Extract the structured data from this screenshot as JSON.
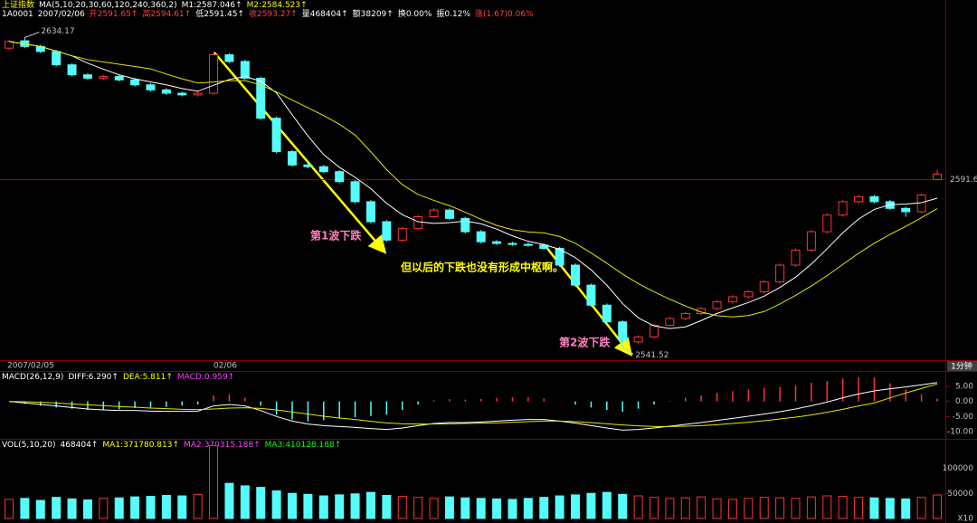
{
  "chart_data": [
    {
      "type": "candlestick",
      "header": [
        {
          "text": "上证指数",
          "color": "#ffff00"
        },
        {
          "text": "MA(5,10,20,30,60,120,240,360,2)",
          "color": "#ffffff"
        },
        {
          "text": "M1:2587.046↑",
          "color": "#ffffff"
        },
        {
          "text": "M2:2584.523↑",
          "color": "#ffff00"
        }
      ],
      "subheader": [
        {
          "text": "1A0001",
          "color": "#ffffff"
        },
        {
          "text": "2007/02/06",
          "color": "#ffffff"
        },
        {
          "text": "开2591.65↑",
          "color": "#ff4040"
        },
        {
          "text": "高2594.61↑",
          "color": "#ff4040"
        },
        {
          "text": "低2591.45↑",
          "color": "#ffffff"
        },
        {
          "text": "收2593.27↑",
          "color": "#ff4040"
        },
        {
          "text": "量468404↑",
          "color": "#ffffff"
        },
        {
          "text": "额38209↑",
          "color": "#ffffff"
        },
        {
          "text": "换0.00%",
          "color": "#ffffff"
        },
        {
          "text": "振0.12%",
          "color": "#ffffff"
        },
        {
          "text": "涨(1.67)0.06%",
          "color": "#ff4040"
        }
      ],
      "time_labels": [
        "2007/02/05",
        "02/06"
      ],
      "period_label": "1分钟",
      "annotations": [
        {
          "text": "第1波下跌",
          "color": "#ff80c0"
        },
        {
          "text": "但以后的下跌也没有形成中枢啊。",
          "color": "#ffff00"
        },
        {
          "text": "第2波下跌",
          "color": "#ff80c0"
        }
      ],
      "up_color": "#ff3232",
      "down_color": "#54fcfc",
      "ma_lines": [
        {
          "period": 5,
          "color": "#ffffff"
        },
        {
          "period": 10,
          "color": "#e6e600"
        }
      ],
      "price_line": 2591.6,
      "ylim": [
        2537,
        2640
      ],
      "candles": [
        [
          2631,
          2633.5,
          2630.5,
          2633
        ],
        [
          2633.2,
          2634.17,
          2631,
          2631.5
        ],
        [
          2631.5,
          2632,
          2629.5,
          2630
        ],
        [
          2630,
          2630.5,
          2625.5,
          2626
        ],
        [
          2626,
          2626.5,
          2622.5,
          2623
        ],
        [
          2623,
          2623.5,
          2621.5,
          2622
        ],
        [
          2622,
          2623,
          2621.5,
          2622.5
        ],
        [
          2622.5,
          2623,
          2621,
          2621.5
        ],
        [
          2621.5,
          2622,
          2619.5,
          2620
        ],
        [
          2620,
          2620.5,
          2618,
          2618.5
        ],
        [
          2618.5,
          2619,
          2617,
          2617.5
        ],
        [
          2617.5,
          2618,
          2616.5,
          2617
        ],
        [
          2617,
          2618,
          2616.5,
          2617.5
        ],
        [
          2617.5,
          2630,
          2617,
          2629
        ],
        [
          2629,
          2629.5,
          2626.5,
          2627
        ],
        [
          2627,
          2627.5,
          2621.5,
          2622
        ],
        [
          2622,
          2622.5,
          2609.5,
          2610
        ],
        [
          2610,
          2610.5,
          2599.5,
          2600
        ],
        [
          2600,
          2600.5,
          2595.5,
          2596
        ],
        [
          2596,
          2597,
          2595,
          2595.5
        ],
        [
          2595.5,
          2596,
          2593.5,
          2594
        ],
        [
          2594,
          2594.5,
          2590.5,
          2591
        ],
        [
          2591,
          2591.5,
          2584.5,
          2585
        ],
        [
          2585,
          2585.5,
          2578.5,
          2579
        ],
        [
          2579,
          2579.5,
          2573,
          2573.5
        ],
        [
          2573.5,
          2577.5,
          2573,
          2577
        ],
        [
          2577,
          2581,
          2576.5,
          2580.5
        ],
        [
          2580.5,
          2583,
          2580,
          2582.5
        ],
        [
          2582.5,
          2583,
          2579.5,
          2580
        ],
        [
          2580,
          2580.5,
          2575.5,
          2576
        ],
        [
          2576,
          2576.5,
          2572.5,
          2573
        ],
        [
          2573,
          2573.5,
          2572,
          2572.5
        ],
        [
          2572.5,
          2573,
          2571.8,
          2572.2
        ],
        [
          2572.2,
          2572.8,
          2571.5,
          2572
        ],
        [
          2572,
          2572.5,
          2570.5,
          2571
        ],
        [
          2571,
          2571.5,
          2565.5,
          2566
        ],
        [
          2566,
          2566.5,
          2559.5,
          2560
        ],
        [
          2560,
          2560.5,
          2553.5,
          2554
        ],
        [
          2554,
          2554.5,
          2548.5,
          2549
        ],
        [
          2549,
          2549.5,
          2541.52,
          2543.5
        ],
        [
          2543,
          2545,
          2542.5,
          2544.5
        ],
        [
          2544.5,
          2548.5,
          2544,
          2548
        ],
        [
          2548,
          2550.5,
          2547.5,
          2550
        ],
        [
          2550,
          2552,
          2549.5,
          2551.5
        ],
        [
          2551.5,
          2553.5,
          2551,
          2553
        ],
        [
          2553,
          2555.5,
          2552.5,
          2555
        ],
        [
          2555,
          2557,
          2554.5,
          2556.5
        ],
        [
          2556.5,
          2558.5,
          2556,
          2558
        ],
        [
          2558,
          2561.5,
          2557.5,
          2561
        ],
        [
          2561,
          2566.5,
          2560.5,
          2566
        ],
        [
          2566,
          2571,
          2565.5,
          2570.5
        ],
        [
          2570.5,
          2576.5,
          2570,
          2576
        ],
        [
          2576,
          2581.5,
          2575.5,
          2581
        ],
        [
          2581,
          2585.5,
          2580.5,
          2585
        ],
        [
          2585,
          2587,
          2584.5,
          2586.5
        ],
        [
          2586.5,
          2587,
          2584.5,
          2585
        ],
        [
          2585,
          2585.5,
          2582.5,
          2583
        ],
        [
          2583,
          2583.5,
          2580.5,
          2582
        ],
        [
          2582,
          2587.5,
          2581.5,
          2587
        ],
        [
          2591.65,
          2594.61,
          2591.45,
          2593.27
        ]
      ]
    },
    {
      "type": "macd",
      "header": [
        {
          "text": "MACD(26,12,9)",
          "color": "#ffffff"
        },
        {
          "text": "DIFF:6.290↑",
          "color": "#ffffff"
        },
        {
          "text": "DEA:5.811↑",
          "color": "#ffff00"
        },
        {
          "text": "MACD:0.959↑",
          "color": "#ff40ff"
        }
      ],
      "ylim": [
        -12.4,
        9.5
      ],
      "yticks": [
        {
          "value": 5,
          "label": "5.00"
        },
        {
          "value": 0,
          "label": "0.00"
        },
        {
          "value": -5,
          "label": "-5.00"
        },
        {
          "value": -10,
          "label": "-10.00"
        }
      ],
      "series": [
        {
          "name": "DIFF",
          "color": "#ffffff",
          "values": [
            0,
            -0.5,
            -1,
            -1.5,
            -2,
            -2.5,
            -2.8,
            -3,
            -3,
            -3.2,
            -3.3,
            -3.3,
            -3.2,
            -1.5,
            -1,
            -1.5,
            -3,
            -5,
            -6.5,
            -7.5,
            -8,
            -8.3,
            -8.6,
            -9,
            -9.3,
            -8.8,
            -8,
            -7.3,
            -7,
            -7,
            -6.8,
            -6.5,
            -6.2,
            -6,
            -6,
            -6.5,
            -7.2,
            -8,
            -8.8,
            -9.5,
            -9.3,
            -8.8,
            -8.2,
            -7.6,
            -7,
            -6.3,
            -5.6,
            -4.9,
            -4.2,
            -3.4,
            -2.5,
            -1.4,
            -0.2,
            1.2,
            2.5,
            3.5,
            4.2,
            4.8,
            5.5,
            6.29
          ]
        },
        {
          "name": "DEA",
          "color": "#e6e600",
          "values": [
            0,
            -0.1,
            -0.3,
            -0.5,
            -0.8,
            -1.1,
            -1.4,
            -1.7,
            -1.9,
            -2.2,
            -2.4,
            -2.6,
            -2.7,
            -2.5,
            -2.2,
            -2.1,
            -2.3,
            -2.8,
            -3.5,
            -4.2,
            -4.9,
            -5.5,
            -6,
            -6.6,
            -7.1,
            -7.4,
            -7.5,
            -7.5,
            -7.4,
            -7.3,
            -7.2,
            -7.1,
            -6.9,
            -6.7,
            -6.5,
            -6.5,
            -6.7,
            -7,
            -7.4,
            -7.8,
            -8.1,
            -8.3,
            -8.3,
            -8.2,
            -8,
            -7.7,
            -7.3,
            -6.9,
            -6.4,
            -5.8,
            -5.2,
            -4.5,
            -3.6,
            -2.6,
            -1.5,
            -0.5,
            1.2,
            2.8,
            4.3,
            5.81
          ]
        }
      ],
      "histogram": [
        0,
        -0.8,
        -1.4,
        -2,
        -2.4,
        -2.8,
        -2.8,
        -2.6,
        -2.2,
        -2,
        -1.8,
        -1.4,
        -1,
        2,
        2.4,
        1.2,
        -1.4,
        -4.4,
        -6,
        -6.6,
        -6.2,
        -5.6,
        -5.2,
        -4.8,
        -4.4,
        -2.8,
        -1,
        0.4,
        0.8,
        0.6,
        0.8,
        1.2,
        1.4,
        1.4,
        1,
        0,
        -1,
        -2,
        -2.8,
        -3.4,
        -2.4,
        -1,
        0.2,
        1.2,
        2,
        2.8,
        3.4,
        4,
        4.4,
        4.8,
        5.4,
        6.2,
        6.8,
        7.6,
        8,
        8,
        6,
        4,
        2.4,
        0.959
      ],
      "up_color": "#ff3232",
      "down_color": "#54fcfc"
    },
    {
      "type": "volume",
      "header": [
        {
          "text": "VOL(5,10,20)",
          "color": "#ffffff"
        },
        {
          "text": "468404↑",
          "color": "#ffffff"
        },
        {
          "text": "MA1:371780.813↑",
          "color": "#ffff00"
        },
        {
          "text": "MA2:370315.188↑",
          "color": "#ff40ff"
        },
        {
          "text": "MA3:410128.188↑",
          "color": "#00ff00"
        }
      ],
      "unit_label": "X10",
      "ylim": [
        0,
        155000
      ],
      "yticks": [
        100000,
        50000
      ],
      "values": [
        38000,
        40000,
        36000,
        42000,
        39000,
        37000,
        40000,
        41000,
        43000,
        44000,
        46000,
        45000,
        48000,
        145000,
        70000,
        65000,
        62000,
        55000,
        50000,
        48000,
        45000,
        47000,
        49000,
        52000,
        46000,
        44000,
        42000,
        40000,
        43000,
        41000,
        40000,
        39000,
        38000,
        40000,
        42000,
        45000,
        47000,
        50000,
        52000,
        48000,
        45000,
        42000,
        40000,
        41000,
        43000,
        39000,
        38000,
        40000,
        42000,
        41000,
        40000,
        43000,
        45000,
        44000,
        42000,
        41000,
        40000,
        39000,
        42000,
        46840.4
      ],
      "up_color": "#ff3232",
      "down_color": "#54fcfc"
    }
  ]
}
